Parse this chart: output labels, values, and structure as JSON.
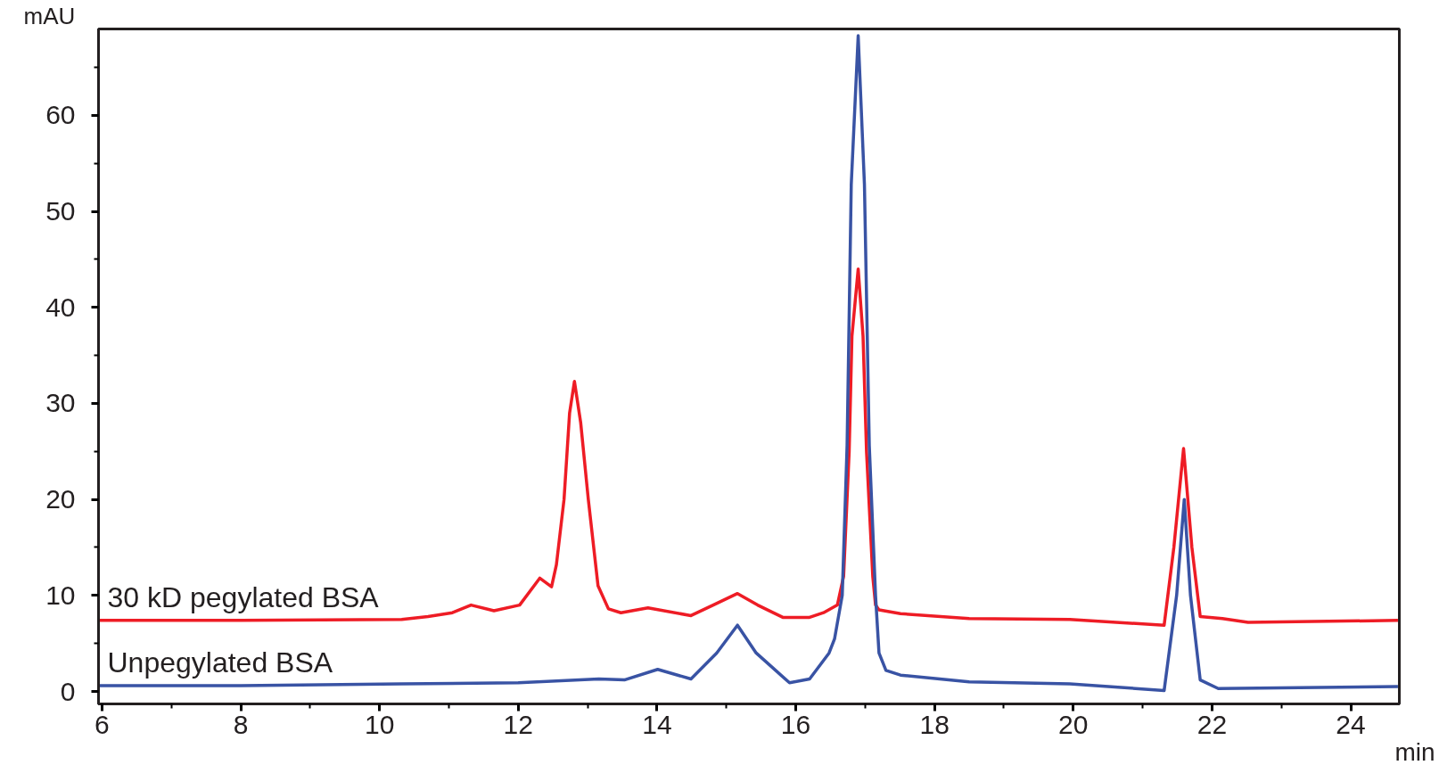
{
  "chart_data": {
    "type": "line",
    "xlabel": "min",
    "ylabel": "mAU",
    "xlim": [
      5.95,
      24.7
    ],
    "ylim": [
      -1.3,
      69
    ],
    "xticks": [
      6,
      8,
      10,
      12,
      14,
      16,
      18,
      20,
      22,
      24
    ],
    "yticks": [
      0,
      10,
      20,
      30,
      40,
      50,
      60
    ],
    "grid": false,
    "marker": "none",
    "line_style": "solid",
    "series": [
      {
        "name": "30 kD pegylated BSA",
        "color": "#ee1c25",
        "x": [
          5.95,
          8,
          10.32,
          10.7,
          11.05,
          11.32,
          11.65,
          12.02,
          12.31,
          12.48,
          12.55,
          12.66,
          12.74,
          12.81,
          12.9,
          13.01,
          13.15,
          13.3,
          13.48,
          13.87,
          14.49,
          14.81,
          15.16,
          15.45,
          15.82,
          16.19,
          16.4,
          16.6,
          16.69,
          16.77,
          16.81,
          16.9,
          16.97,
          17.02,
          17.11,
          17.15,
          17.2,
          17.51,
          18.5,
          19.95,
          21.31,
          21.45,
          21.59,
          21.71,
          21.83,
          22.15,
          22.52,
          24.68
        ],
        "values": [
          7.4,
          7.4,
          7.5,
          7.8,
          8.2,
          9.0,
          8.4,
          9.0,
          11.8,
          10.9,
          13.2,
          20,
          29,
          32.3,
          28,
          20,
          11,
          8.6,
          8.2,
          8.7,
          7.9,
          9,
          10.2,
          9,
          7.7,
          7.7,
          8.2,
          9,
          12,
          25,
          37,
          44.0,
          37,
          25,
          12,
          9,
          8.5,
          8.1,
          7.6,
          7.5,
          6.9,
          15,
          25.3,
          15,
          7.8,
          7.6,
          7.2,
          7.4
        ]
      },
      {
        "name": "Unpegylated BSA",
        "color": "#3953a4",
        "x": [
          5.95,
          8,
          10.32,
          12,
          13.16,
          13.53,
          14.01,
          14.49,
          14.86,
          15.16,
          15.43,
          15.91,
          16.2,
          16.48,
          16.56,
          16.67,
          16.74,
          16.8,
          16.9,
          16.99,
          17.06,
          17.15,
          17.2,
          17.3,
          17.51,
          18.5,
          19.95,
          21.31,
          21.49,
          21.6,
          21.69,
          21.83,
          22.09,
          24.68
        ],
        "values": [
          0.6,
          0.6,
          0.8,
          0.9,
          1.3,
          1.2,
          2.3,
          1.3,
          4,
          6.9,
          4,
          0.9,
          1.3,
          4,
          5.5,
          10,
          25.6,
          52.8,
          68.3,
          52.8,
          25.6,
          10,
          4,
          2.2,
          1.7,
          1.0,
          0.8,
          0.1,
          10,
          20.0,
          10,
          1.2,
          0.3,
          0.5
        ]
      }
    ]
  }
}
